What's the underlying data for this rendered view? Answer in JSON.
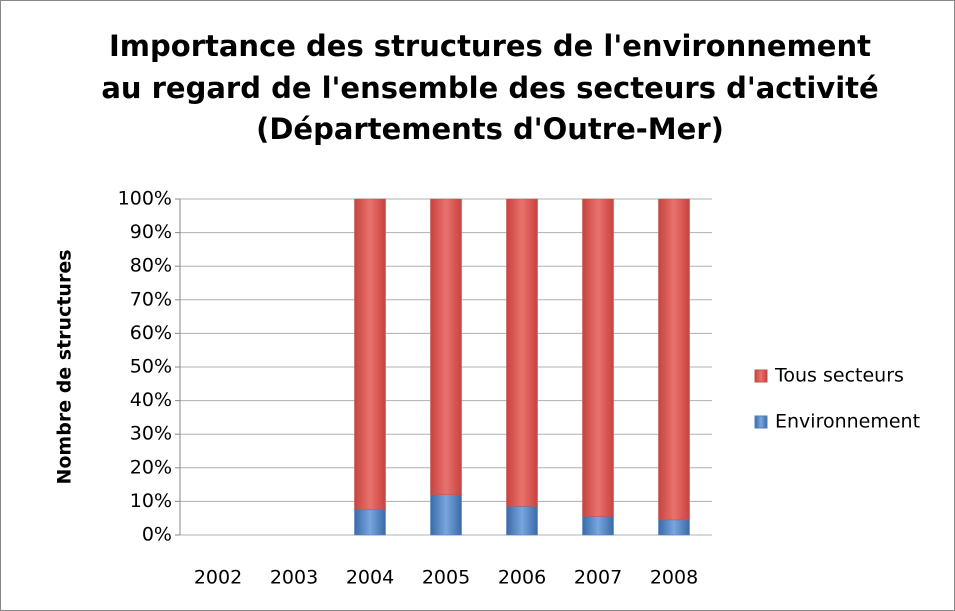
{
  "chart_data": {
    "type": "stacked_bar",
    "title": [
      "Importance des structures de l'environnement",
      "au regard de l'ensemble des secteurs d'activité",
      "(Départements d'Outre-Mer)"
    ],
    "y_label": "Nombre de structures",
    "categories": [
      "2002",
      "2003",
      "2004",
      "2005",
      "2006",
      "2007",
      "2008"
    ],
    "series": [
      {
        "name": "Environnement",
        "color": "#4f81bd",
        "values": [
          null,
          null,
          7.5,
          12,
          8.5,
          5.5,
          4.5
        ]
      },
      {
        "name": "Tous secteurs",
        "color": "#c0504d",
        "values": [
          null,
          null,
          92.5,
          88,
          91.5,
          94.5,
          95.5
        ]
      }
    ],
    "ylim": [
      0,
      100
    ],
    "yticks": [
      {
        "value": 0,
        "label": "0%"
      },
      {
        "value": 10,
        "label": "10%"
      },
      {
        "value": 20,
        "label": "20%"
      },
      {
        "value": 30,
        "label": "30%"
      },
      {
        "value": 40,
        "label": "40%"
      },
      {
        "value": 50,
        "label": "50%"
      },
      {
        "value": 60,
        "label": "60%"
      },
      {
        "value": 70,
        "label": "70%"
      },
      {
        "value": 80,
        "label": "80%"
      },
      {
        "value": 90,
        "label": "90%"
      },
      {
        "value": 100,
        "label": "100%"
      }
    ],
    "grid": true,
    "legend": "right"
  }
}
